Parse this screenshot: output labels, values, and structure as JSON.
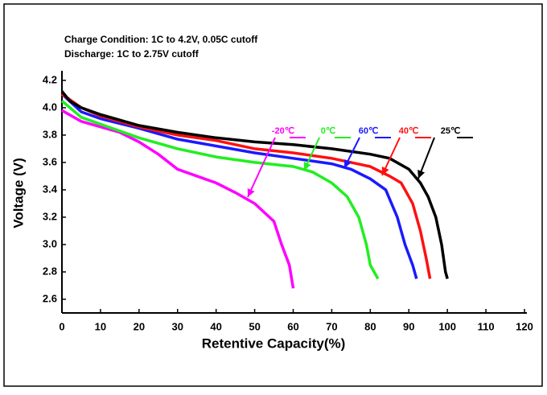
{
  "chart_data": {
    "type": "line",
    "subtitle_lines": [
      "Charge Condition: 1C to 4.2V, 0.05C cutoff",
      "Discharge: 1C to 2.75V cutoff"
    ],
    "xlabel": "Retentive Capacity(%)",
    "ylabel": "Voltage (V)",
    "xlim": [
      0,
      120
    ],
    "ylim": [
      2.5,
      4.27
    ],
    "xticks": [
      0,
      10,
      20,
      30,
      40,
      50,
      60,
      70,
      80,
      90,
      100,
      110,
      120
    ],
    "yticks": [
      2.6,
      2.8,
      {
        "value": 3,
        "label": "3.0"
      },
      3.2,
      3.4,
      3.6,
      3.8,
      {
        "value": 4,
        "label": "4.0"
      },
      4.2
    ],
    "series": [
      {
        "name": "-20℃",
        "color": "#ff00ff",
        "x": [
          0,
          5,
          10,
          15,
          20,
          25,
          30,
          40,
          45,
          50,
          55,
          57,
          59,
          60
        ],
        "values": [
          3.98,
          3.9,
          3.86,
          3.82,
          3.75,
          3.66,
          3.55,
          3.45,
          3.38,
          3.3,
          3.17,
          3.0,
          2.85,
          2.68
        ]
      },
      {
        "name": "0℃",
        "color": "#22ee22",
        "x": [
          0,
          5,
          10,
          20,
          30,
          40,
          50,
          60,
          65,
          70,
          74,
          77,
          79,
          80,
          82
        ],
        "values": [
          4.05,
          3.93,
          3.88,
          3.78,
          3.7,
          3.64,
          3.6,
          3.57,
          3.53,
          3.45,
          3.35,
          3.2,
          3.0,
          2.85,
          2.75
        ]
      },
      {
        "name": "60℃",
        "color": "#1a1aff",
        "x": [
          0,
          5,
          10,
          20,
          30,
          40,
          50,
          60,
          70,
          75,
          80,
          84,
          87,
          89,
          91,
          92
        ],
        "values": [
          4.1,
          3.97,
          3.92,
          3.85,
          3.77,
          3.72,
          3.67,
          3.63,
          3.59,
          3.55,
          3.48,
          3.4,
          3.2,
          3.0,
          2.85,
          2.75
        ]
      },
      {
        "name": "40℃",
        "color": "#ff1010",
        "x": [
          0,
          5,
          10,
          20,
          30,
          40,
          50,
          60,
          70,
          75,
          80,
          85,
          88,
          91,
          93,
          94.5,
          95.5
        ],
        "values": [
          4.1,
          4.0,
          3.94,
          3.86,
          3.8,
          3.76,
          3.7,
          3.67,
          3.63,
          3.6,
          3.57,
          3.5,
          3.45,
          3.3,
          3.1,
          2.9,
          2.75
        ]
      },
      {
        "name": "25℃",
        "color": "#000000",
        "x": [
          0,
          2,
          5,
          10,
          20,
          30,
          40,
          50,
          60,
          70,
          80,
          85,
          90,
          93,
          95,
          97,
          98.5,
          99.5,
          100
        ],
        "values": [
          4.12,
          4.05,
          4.0,
          3.95,
          3.87,
          3.82,
          3.78,
          3.75,
          3.73,
          3.7,
          3.66,
          3.63,
          3.55,
          3.45,
          3.35,
          3.2,
          3.0,
          2.8,
          2.75
        ]
      }
    ]
  }
}
